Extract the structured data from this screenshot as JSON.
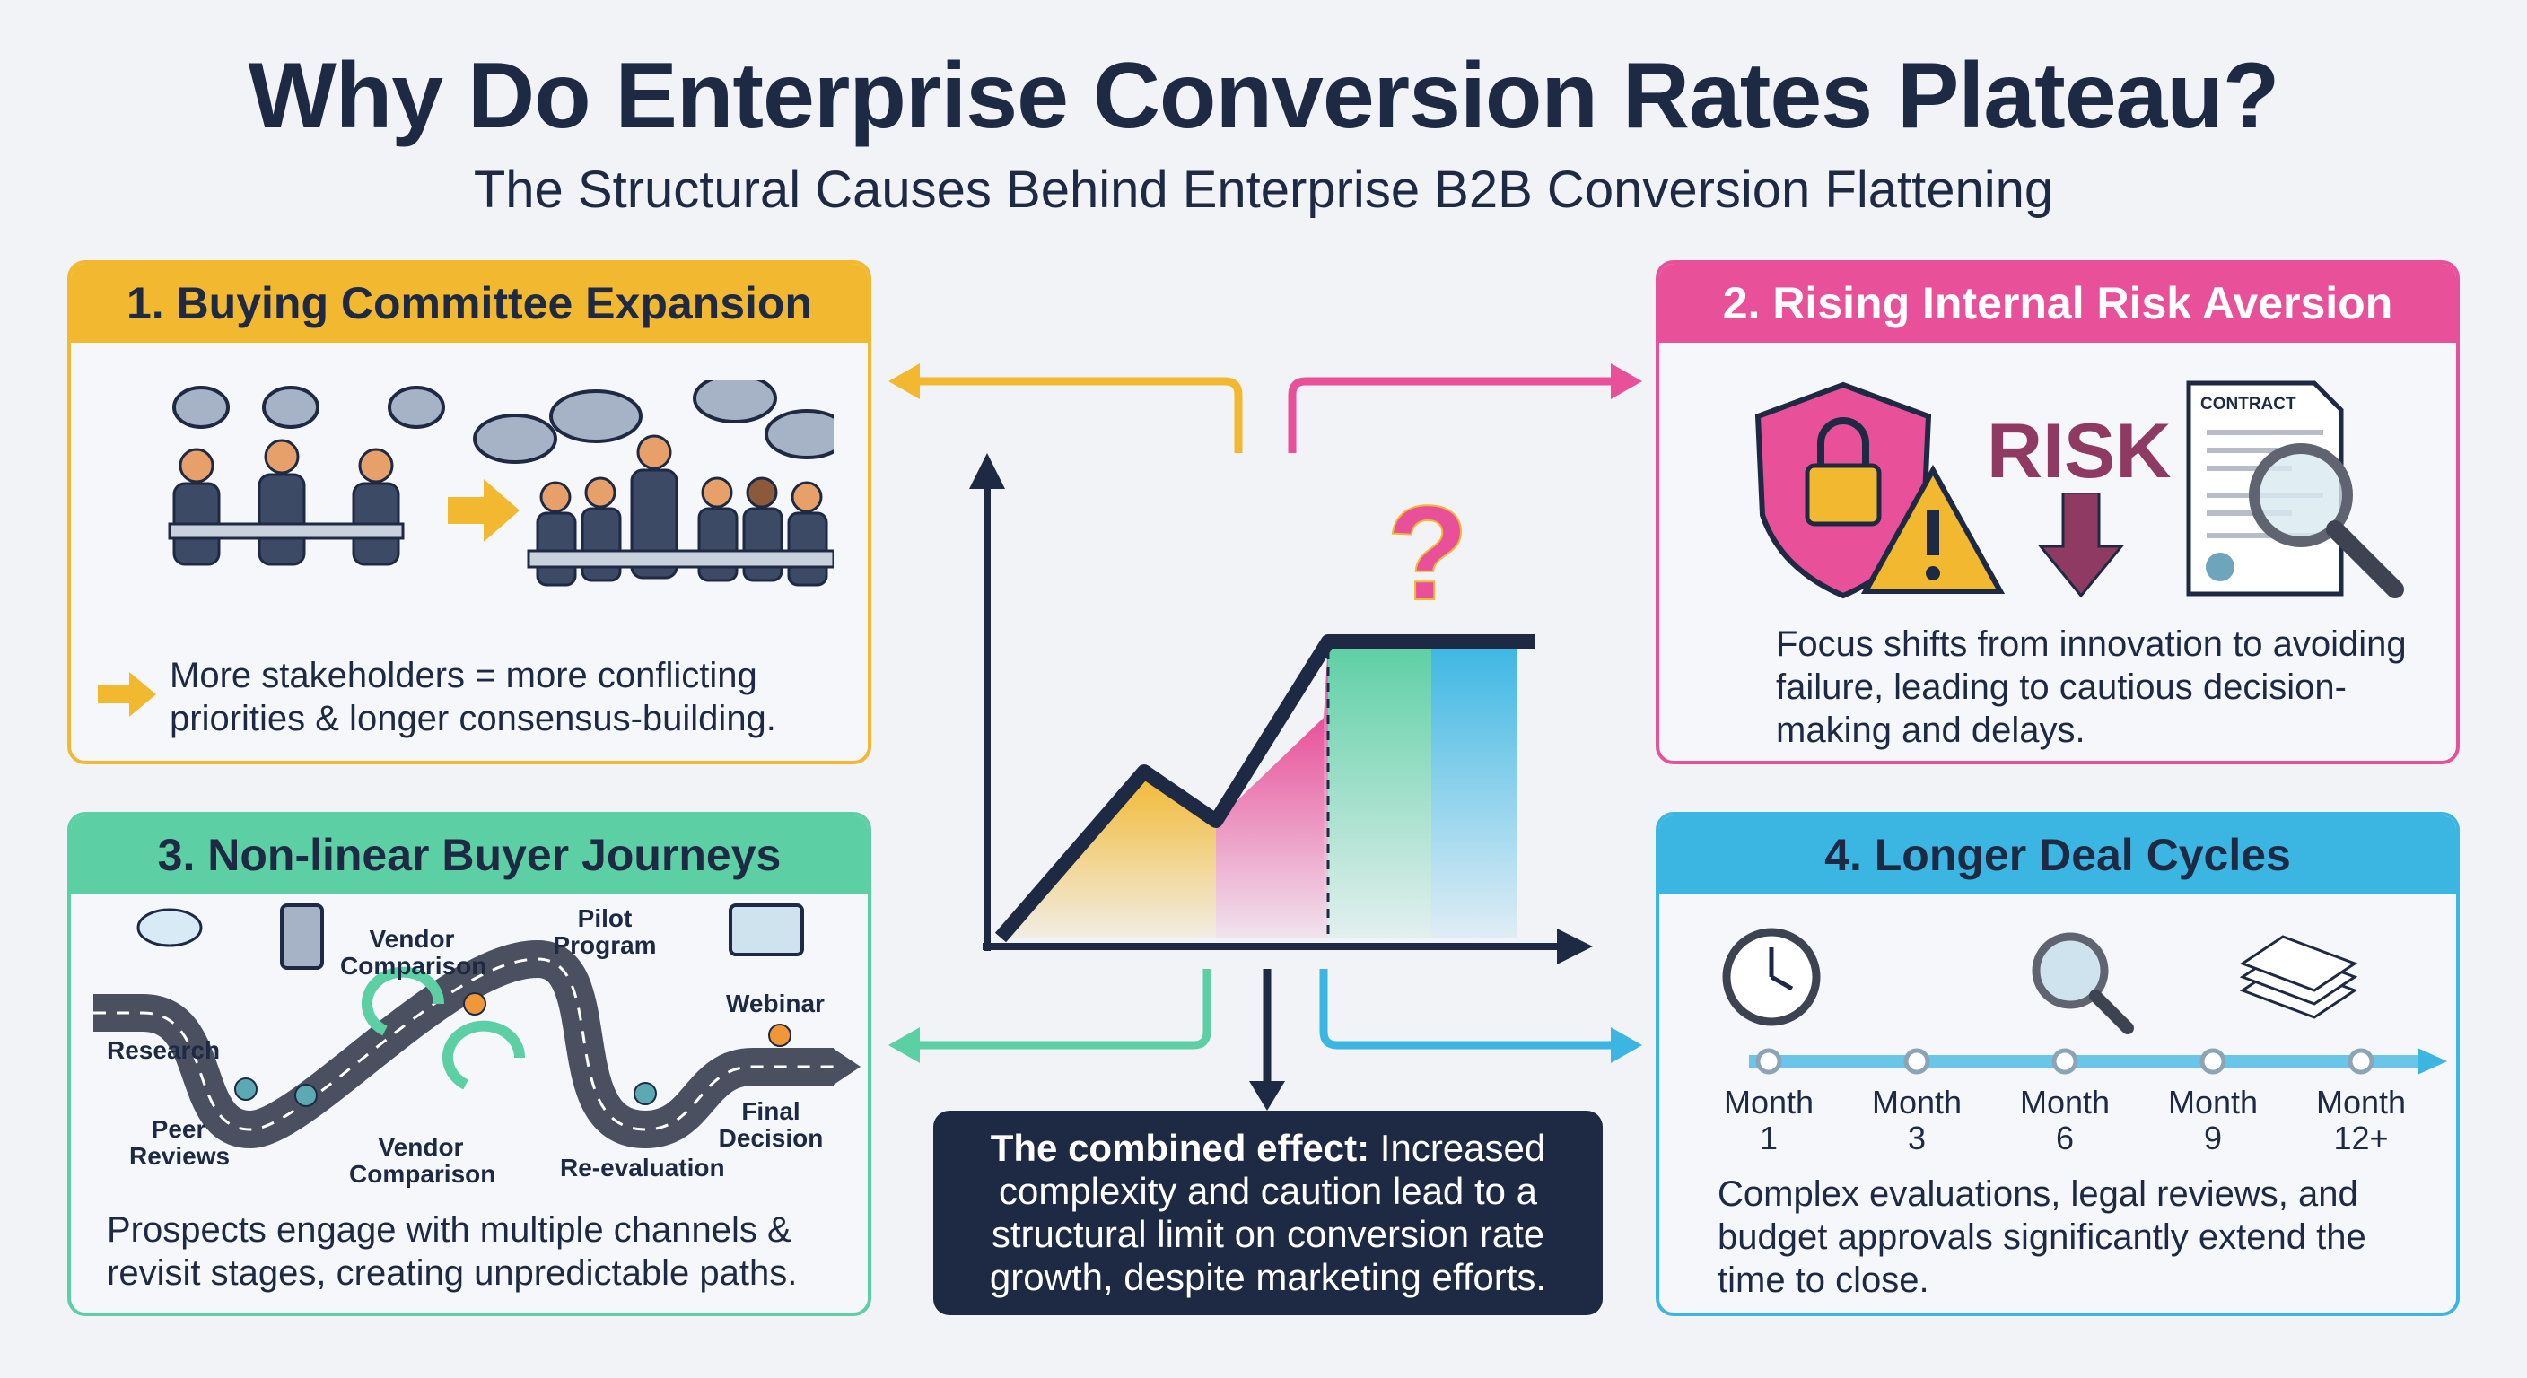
{
  "header": {
    "title": "Why Do Enterprise Conversion Rates Plateau?",
    "subtitle": "The Structural Causes Behind Enterprise B2B Conversion Flattening"
  },
  "colors": {
    "navy": "#1e2a44",
    "yellow": "#f2b830",
    "pink": "#e8519a",
    "teal": "#5ccfa4",
    "blue": "#3bb6e3",
    "risk": "#8e3a62"
  },
  "panels": {
    "p1": {
      "title": "1. Buying Committee Expansion",
      "body": "More stakeholders = more conflicting priorities & longer consensus-building.",
      "icon": "meeting-illustration"
    },
    "p2": {
      "title": "2. Rising Internal Risk Aversion",
      "risk_word": "RISK",
      "contract_label": "CONTRACT",
      "body": "Focus shifts from innovation to avoiding failure, leading to cautious decision-making and delays."
    },
    "p3": {
      "title": "3. Non-linear Buyer Journeys",
      "stages": [
        "Research",
        "Vendor Comparison",
        "Pilot Program",
        "Webinar",
        "Peer Reviews",
        "Vendor Comparison",
        "Re-evaluation",
        "Final Decision"
      ],
      "body": "Prospects engage with multiple channels & revisit stages, creating unpredictable paths."
    },
    "p4": {
      "title": "4. Longer Deal Cycles",
      "months": [
        {
          "l1": "Month",
          "l2": "1"
        },
        {
          "l1": "Month",
          "l2": "3"
        },
        {
          "l1": "Month",
          "l2": "6"
        },
        {
          "l1": "Month",
          "l2": "9"
        },
        {
          "l1": "Month",
          "l2": "12+"
        }
      ],
      "body": "Complex evaluations, legal reviews, and budget approvals significantly extend the time to close."
    }
  },
  "center": {
    "question_mark": "?",
    "combined_bold": "The combined effect:",
    "combined_text": " Increased complexity and caution lead to a structural limit on conversion rate growth, despite marketing efforts."
  }
}
